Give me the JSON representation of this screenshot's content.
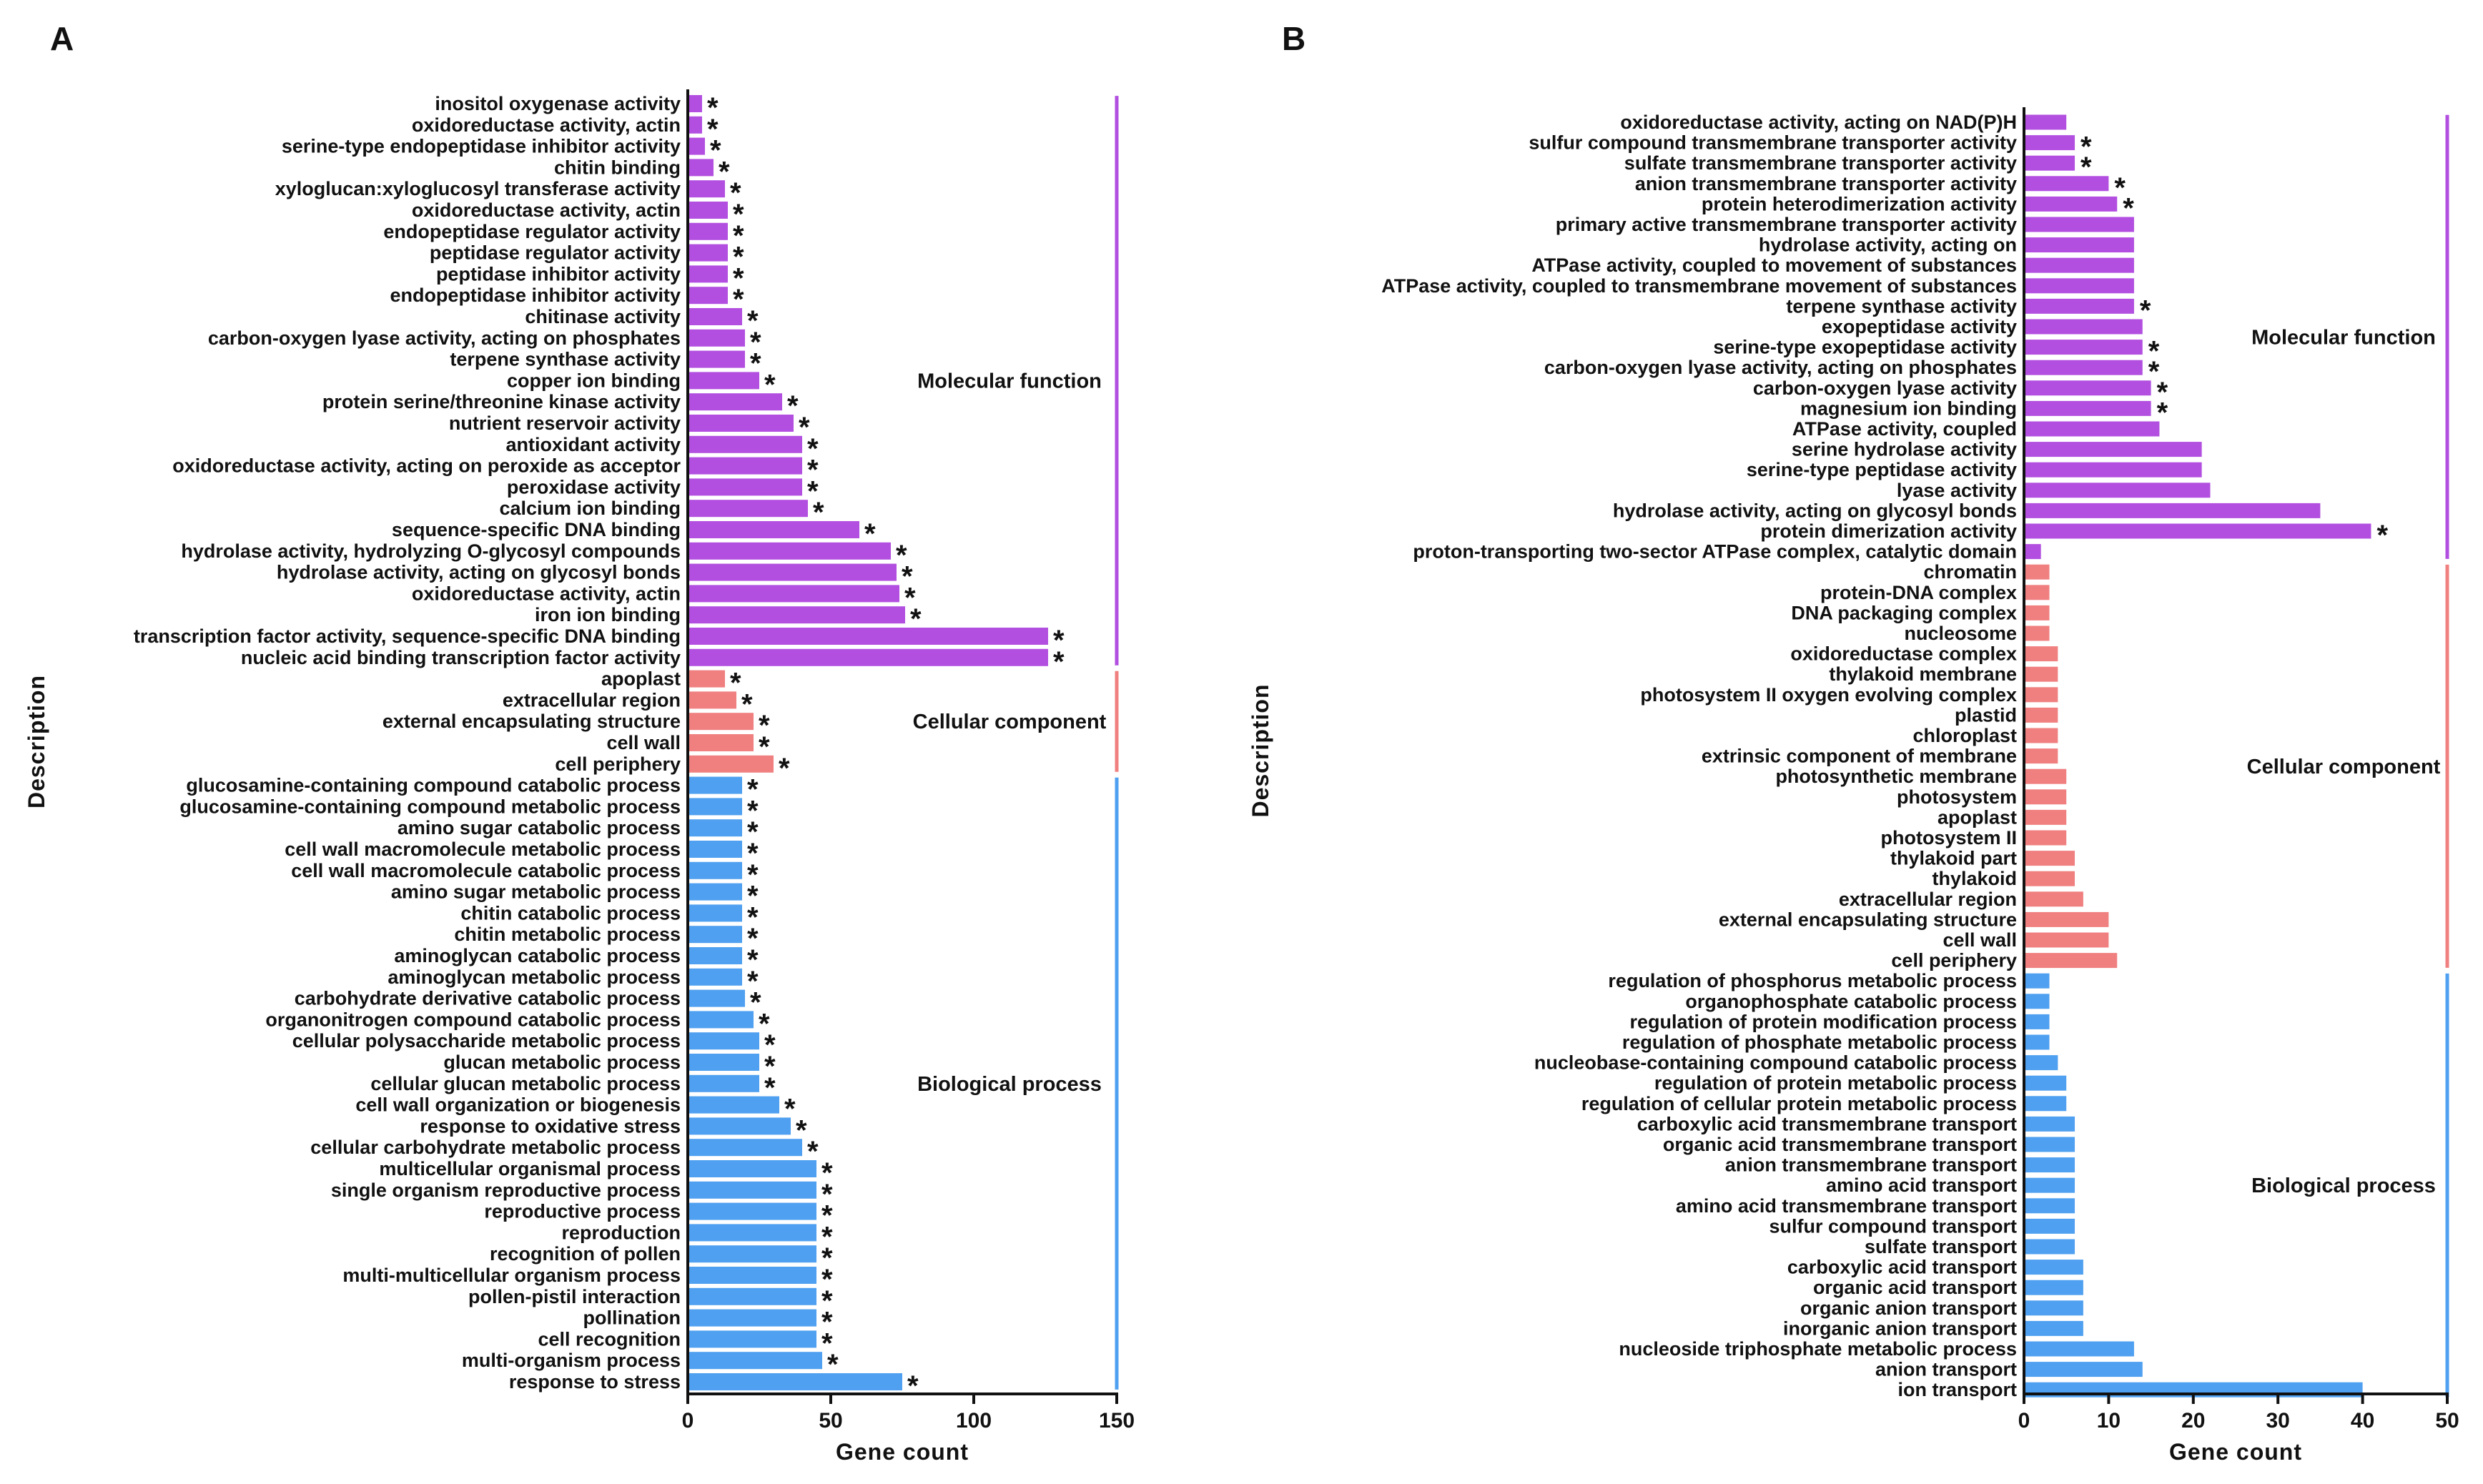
{
  "chart_data": [
    {
      "type": "bar",
      "orientation": "horizontal",
      "panel_label": "A",
      "xlabel": "Gene count",
      "ylabel": "Description",
      "xlim": [
        0,
        150
      ],
      "xticks": [
        "0",
        "50",
        "100",
        "150"
      ],
      "star_symbol": "*",
      "groups": [
        {
          "name": "Molecular function",
          "color": "#b24fe0",
          "categories": [
            "inositol oxygenase activity",
            "oxidoreductase activity, actin",
            "serine-type endopeptidase inhibitor activity",
            "chitin binding",
            "xyloglucan:xyloglucosyl transferase activity",
            "oxidoreductase activity, actin",
            "endopeptidase regulator activity",
            "peptidase regulator activity",
            "peptidase inhibitor activity",
            "endopeptidase inhibitor activity",
            "chitinase activity",
            "carbon-oxygen lyase activity, acting on phosphates",
            "terpene synthase activity",
            "copper ion binding",
            "protein serine/threonine kinase activity",
            "nutrient reservoir activity",
            "antioxidant activity",
            "oxidoreductase activity, acting on peroxide as acceptor",
            "peroxidase activity",
            "calcium ion binding",
            "sequence-specific DNA binding",
            "hydrolase activity, hydrolyzing O-glycosyl compounds",
            "hydrolase activity, acting on glycosyl bonds",
            "oxidoreductase activity, actin",
            "iron ion binding",
            "transcription factor activity, sequence-specific DNA binding",
            "nucleic acid binding transcription factor activity"
          ],
          "values": [
            5,
            5,
            6,
            9,
            13,
            14,
            14,
            14,
            14,
            14,
            19,
            20,
            20,
            25,
            33,
            37,
            40,
            40,
            40,
            42,
            60,
            71,
            73,
            74,
            76,
            126,
            126
          ],
          "significant": [
            true,
            true,
            true,
            true,
            true,
            true,
            true,
            true,
            true,
            true,
            true,
            true,
            true,
            true,
            true,
            true,
            true,
            true,
            true,
            true,
            true,
            true,
            true,
            true,
            true,
            true,
            true
          ]
        },
        {
          "name": "Cellular component",
          "color": "#f08080",
          "categories": [
            "apoplast",
            "extracellular region",
            "external encapsulating structure",
            "cell wall",
            "cell periphery"
          ],
          "values": [
            13,
            17,
            23,
            23,
            30
          ],
          "significant": [
            true,
            true,
            true,
            true,
            true
          ]
        },
        {
          "name": "Biological process",
          "color": "#4fa0f0",
          "categories": [
            "glucosamine-containing compound catabolic process",
            "glucosamine-containing compound metabolic process",
            "amino sugar catabolic process",
            "cell wall macromolecule metabolic process",
            "cell wall macromolecule catabolic process",
            "amino sugar metabolic process",
            "chitin catabolic process",
            "chitin metabolic process",
            "aminoglycan catabolic process",
            "aminoglycan metabolic process",
            "carbohydrate derivative catabolic process",
            "organonitrogen compound catabolic process",
            "cellular polysaccharide metabolic process",
            "glucan metabolic process",
            "cellular glucan metabolic process",
            "cell wall organization or biogenesis",
            "response to oxidative stress",
            "cellular carbohydrate metabolic process",
            "multicellular organismal process",
            "single organism reproductive process",
            "reproductive process",
            "reproduction",
            "recognition of pollen",
            "multi-multicellular organism process",
            "pollen-pistil interaction",
            "pollination",
            "cell recognition",
            "multi-organism process",
            "response to stress"
          ],
          "values": [
            19,
            19,
            19,
            19,
            19,
            19,
            19,
            19,
            19,
            19,
            20,
            23,
            25,
            25,
            25,
            32,
            36,
            40,
            45,
            45,
            45,
            45,
            45,
            45,
            45,
            45,
            45,
            47,
            75
          ],
          "significant": [
            true,
            true,
            true,
            true,
            true,
            true,
            true,
            true,
            true,
            true,
            true,
            true,
            true,
            true,
            true,
            true,
            true,
            true,
            true,
            true,
            true,
            true,
            true,
            true,
            true,
            true,
            true,
            true,
            true
          ]
        }
      ]
    },
    {
      "type": "bar",
      "orientation": "horizontal",
      "panel_label": "B",
      "xlabel": "Gene count",
      "ylabel": "Description",
      "xlim": [
        0,
        50
      ],
      "xticks": [
        "0",
        "10",
        "20",
        "30",
        "40",
        "50"
      ],
      "star_symbol": "*",
      "groups": [
        {
          "name": "Molecular function",
          "color": "#b24fe0",
          "categories": [
            "oxidoreductase activity, acting on NAD(P)H",
            "sulfur compound transmembrane transporter activity",
            "sulfate transmembrane transporter activity",
            "anion transmembrane transporter activity",
            "protein heterodimerization activity",
            "primary active transmembrane transporter activity",
            "hydrolase activity, acting on",
            "ATPase activity, coupled to movement of substances",
            "ATPase activity, coupled to transmembrane movement of substances",
            "terpene synthase activity",
            "exopeptidase activity",
            "serine-type exopeptidase activity",
            "carbon-oxygen lyase activity, acting on phosphates",
            "carbon-oxygen lyase activity",
            "magnesium ion binding",
            "ATPase activity, coupled",
            "serine hydrolase activity",
            "serine-type peptidase activity",
            "lyase activity",
            "hydrolase activity, acting on glycosyl bonds",
            "protein dimerization activity",
            "proton-transporting two-sector ATPase complex, catalytic domain"
          ],
          "values": [
            5,
            6,
            6,
            10,
            11,
            13,
            13,
            13,
            13,
            13,
            14,
            14,
            14,
            15,
            15,
            16,
            21,
            21,
            22,
            35,
            41,
            2
          ],
          "significant": [
            false,
            true,
            true,
            true,
            true,
            false,
            false,
            false,
            false,
            true,
            false,
            true,
            true,
            true,
            true,
            false,
            false,
            false,
            false,
            false,
            true,
            false
          ]
        },
        {
          "name": "Cellular component",
          "color": "#f08080",
          "categories": [
            "chromatin",
            "protein-DNA complex",
            "DNA packaging complex",
            "nucleosome",
            "oxidoreductase complex",
            "thylakoid membrane",
            "photosystem II oxygen evolving complex",
            "plastid",
            "chloroplast",
            "extrinsic component of membrane",
            "photosynthetic membrane",
            "photosystem",
            "apoplast",
            "photosystem II",
            "thylakoid part",
            "thylakoid",
            "extracellular region",
            "external encapsulating structure",
            "cell wall",
            "cell periphery"
          ],
          "values": [
            3,
            3,
            3,
            3,
            4,
            4,
            4,
            4,
            4,
            4,
            5,
            5,
            5,
            5,
            6,
            6,
            7,
            10,
            10,
            11
          ],
          "significant": [
            false,
            false,
            false,
            false,
            false,
            false,
            false,
            false,
            false,
            false,
            false,
            false,
            false,
            false,
            false,
            false,
            false,
            false,
            false,
            false
          ]
        },
        {
          "name": "Biological process",
          "color": "#4fa0f0",
          "categories": [
            "regulation of phosphorus metabolic process",
            "organophosphate catabolic process",
            "regulation of protein modification process",
            "regulation of phosphate metabolic process",
            "nucleobase-containing compound catabolic process",
            "regulation of protein metabolic process",
            "regulation of cellular protein metabolic process",
            "carboxylic acid transmembrane transport",
            "organic acid transmembrane transport",
            "anion transmembrane transport",
            "amino acid transport",
            "amino acid transmembrane transport",
            "sulfur compound transport",
            "sulfate transport",
            "carboxylic acid transport",
            "organic acid transport",
            "organic anion transport",
            "inorganic anion transport",
            "nucleoside triphosphate metabolic process",
            "anion transport",
            "ion transport"
          ],
          "values": [
            3,
            3,
            3,
            3,
            4,
            5,
            5,
            6,
            6,
            6,
            6,
            6,
            6,
            6,
            7,
            7,
            7,
            7,
            13,
            14,
            40
          ],
          "significant": [
            false,
            false,
            false,
            false,
            false,
            false,
            false,
            false,
            false,
            false,
            false,
            false,
            false,
            false,
            false,
            false,
            false,
            false,
            false,
            false,
            false
          ]
        }
      ]
    }
  ]
}
